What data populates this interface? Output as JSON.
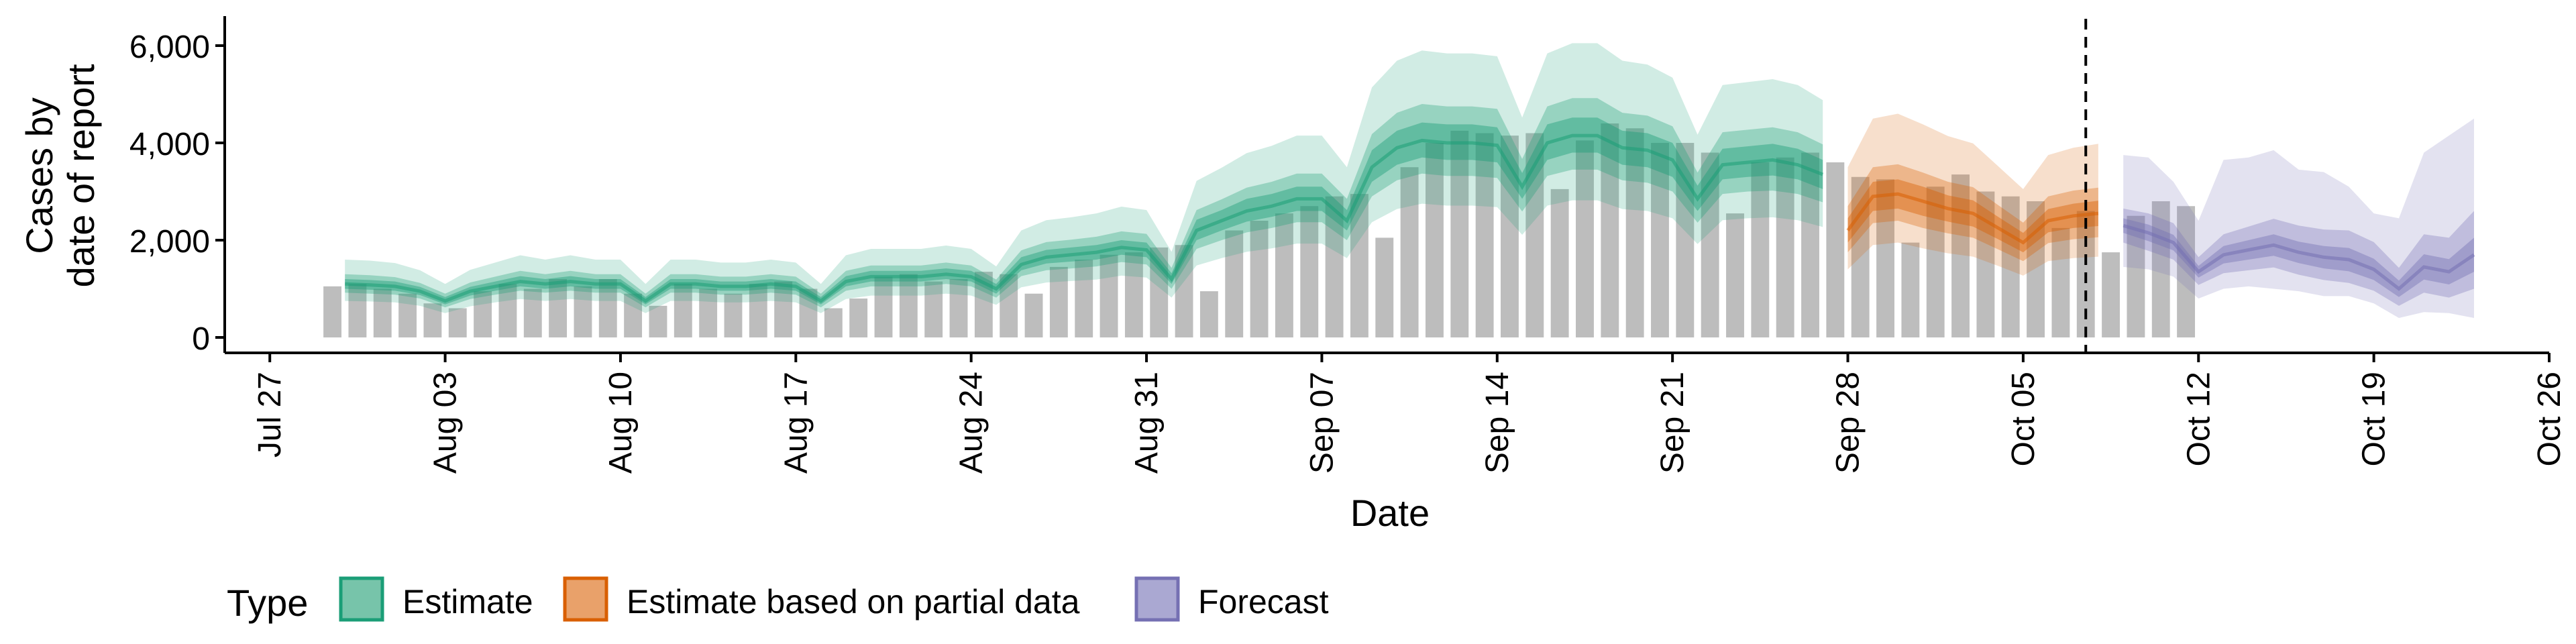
{
  "chart_data": {
    "type": "bar",
    "ylabel_lines": [
      "Cases by",
      "date of report"
    ],
    "xlabel": "Date",
    "ylim": [
      0,
      6000
    ],
    "y_ticks": [
      {
        "value": 0,
        "label": "0"
      },
      {
        "value": 2000,
        "label": "2,000"
      },
      {
        "value": 4000,
        "label": "4,000"
      },
      {
        "value": 6000,
        "label": "6,000"
      }
    ],
    "x_ticks": [
      {
        "day": 0,
        "label": "Jul 27"
      },
      {
        "day": 7,
        "label": "Aug 03"
      },
      {
        "day": 14,
        "label": "Aug 10"
      },
      {
        "day": 21,
        "label": "Aug 17"
      },
      {
        "day": 28,
        "label": "Aug 24"
      },
      {
        "day": 35,
        "label": "Aug 31"
      },
      {
        "day": 42,
        "label": "Sep 07"
      },
      {
        "day": 49,
        "label": "Sep 14"
      },
      {
        "day": 56,
        "label": "Sep 21"
      },
      {
        "day": 63,
        "label": "Sep 28"
      },
      {
        "day": 70,
        "label": "Oct 05"
      },
      {
        "day": 77,
        "label": "Oct 12"
      },
      {
        "day": 84,
        "label": "Oct 19"
      },
      {
        "day": 91,
        "label": "Oct 26"
      }
    ],
    "x_domain_days": [
      -1.8,
      91
    ],
    "date_origin": "Jul 27",
    "cutoff_day": 72.5,
    "reported_cases": {
      "start_day": 2.5,
      "values": [
        1050,
        1100,
        1000,
        900,
        700,
        600,
        950,
        1100,
        1000,
        1200,
        1050,
        1200,
        900,
        650,
        1100,
        1000,
        900,
        1100,
        1150,
        1000,
        600,
        800,
        1250,
        1300,
        1150,
        1200,
        1350,
        1300,
        900,
        1450,
        1600,
        1700,
        1750,
        1850,
        1900,
        950,
        2200,
        2400,
        2550,
        2700,
        2900,
        2950,
        2050,
        3500,
        4000,
        4250,
        4200,
        4150,
        4200,
        3050,
        4050,
        4400,
        4300,
        4000,
        4000,
        3800,
        2550,
        3600,
        3700,
        3800,
        3600,
        3300,
        3250,
        1950,
        3100,
        3350,
        3000,
        2900,
        2800,
        2250,
        2600,
        1750,
        2500,
        2800,
        2700
      ]
    },
    "series": [
      {
        "name": "Estimate",
        "color": "#1b9e77",
        "start_day": 3,
        "median": [
          1100,
          1080,
          1050,
          950,
          750,
          950,
          1050,
          1150,
          1100,
          1150,
          1100,
          1100,
          750,
          1100,
          1100,
          1050,
          1050,
          1100,
          1050,
          750,
          1150,
          1250,
          1250,
          1250,
          1300,
          1250,
          1000,
          1500,
          1650,
          1700,
          1750,
          1850,
          1800,
          1200,
          2200,
          2400,
          2600,
          2700,
          2850,
          2850,
          2400,
          3500,
          3900,
          4050,
          4000,
          4000,
          3950,
          3100,
          4000,
          4150,
          4150,
          3900,
          3850,
          3650,
          2850,
          3550,
          3600,
          3650,
          3550,
          3350
        ],
        "inner_lo": [
          1000,
          980,
          960,
          870,
          680,
          860,
          960,
          1050,
          1000,
          1050,
          1000,
          1000,
          680,
          1000,
          1000,
          960,
          960,
          1000,
          960,
          680,
          1050,
          1150,
          1150,
          1150,
          1200,
          1150,
          900,
          1380,
          1520,
          1560,
          1600,
          1700,
          1650,
          1100,
          2000,
          2200,
          2380,
          2480,
          2600,
          2600,
          2200,
          3200,
          3550,
          3700,
          3650,
          3650,
          3600,
          2850,
          3650,
          3800,
          3800,
          3550,
          3500,
          3300,
          2600,
          3250,
          3300,
          3330,
          3250,
          3050
        ],
        "inner_hi": [
          1200,
          1180,
          1150,
          1040,
          830,
          1040,
          1150,
          1260,
          1200,
          1260,
          1200,
          1200,
          830,
          1200,
          1200,
          1150,
          1150,
          1200,
          1150,
          830,
          1260,
          1370,
          1370,
          1370,
          1420,
          1370,
          1100,
          1650,
          1800,
          1850,
          1900,
          2000,
          1950,
          1320,
          2420,
          2620,
          2850,
          2950,
          3100,
          3100,
          2620,
          3850,
          4250,
          4420,
          4380,
          4380,
          4320,
          3380,
          4380,
          4520,
          4520,
          4250,
          4200,
          4000,
          3120,
          3880,
          3930,
          3980,
          3880,
          3650
        ],
        "mid_lo": [
          920,
          900,
          880,
          800,
          620,
          790,
          880,
          960,
          920,
          960,
          920,
          920,
          620,
          920,
          920,
          880,
          880,
          920,
          880,
          620,
          960,
          1050,
          1050,
          1050,
          1100,
          1050,
          820,
          1260,
          1380,
          1420,
          1460,
          1550,
          1500,
          1000,
          1820,
          2000,
          2160,
          2250,
          2370,
          2370,
          2000,
          2900,
          3230,
          3370,
          3320,
          3320,
          3280,
          2590,
          3320,
          3450,
          3450,
          3230,
          3180,
          3000,
          2360,
          2950,
          3000,
          3020,
          2950,
          2780
        ],
        "mid_hi": [
          1300,
          1280,
          1240,
          1120,
          900,
          1130,
          1250,
          1370,
          1300,
          1370,
          1300,
          1300,
          900,
          1300,
          1300,
          1250,
          1250,
          1300,
          1250,
          900,
          1370,
          1480,
          1480,
          1480,
          1540,
          1480,
          1190,
          1790,
          1960,
          2010,
          2070,
          2180,
          2130,
          1430,
          2620,
          2840,
          3080,
          3200,
          3370,
          3370,
          2850,
          4180,
          4620,
          4800,
          4750,
          4750,
          4700,
          3670,
          4750,
          4920,
          4920,
          4620,
          4560,
          4340,
          3390,
          4220,
          4270,
          4320,
          4220,
          3970
        ],
        "outer_lo": [
          750,
          740,
          720,
          650,
          500,
          640,
          720,
          790,
          750,
          790,
          750,
          750,
          500,
          750,
          750,
          720,
          720,
          750,
          720,
          500,
          790,
          860,
          860,
          860,
          900,
          860,
          670,
          1030,
          1130,
          1160,
          1190,
          1270,
          1230,
          820,
          1480,
          1630,
          1760,
          1830,
          1930,
          1930,
          1630,
          2370,
          2640,
          2750,
          2710,
          2710,
          2680,
          2110,
          2710,
          2820,
          2820,
          2640,
          2600,
          2450,
          1920,
          2410,
          2450,
          2470,
          2410,
          2270
        ],
        "outer_hi": [
          1600,
          1580,
          1530,
          1380,
          1100,
          1390,
          1540,
          1690,
          1600,
          1690,
          1600,
          1600,
          1100,
          1600,
          1600,
          1540,
          1540,
          1600,
          1540,
          1100,
          1690,
          1820,
          1820,
          1820,
          1890,
          1820,
          1460,
          2200,
          2410,
          2470,
          2550,
          2690,
          2620,
          1760,
          3220,
          3490,
          3790,
          3940,
          4150,
          4150,
          3500,
          5140,
          5690,
          5900,
          5840,
          5840,
          5780,
          4520,
          5840,
          6050,
          6050,
          5690,
          5610,
          5340,
          4170,
          5190,
          5250,
          5310,
          5190,
          4880
        ]
      },
      {
        "name": "Estimate based on partial data",
        "color": "#d95f02",
        "start_day": 63,
        "median": [
          2200,
          2900,
          2950,
          2800,
          2650,
          2550,
          2250,
          1950,
          2400,
          2500,
          2550
        ],
        "inner_lo": [
          1950,
          2600,
          2650,
          2500,
          2380,
          2280,
          2020,
          1750,
          2160,
          2250,
          2290
        ],
        "inner_hi": [
          2450,
          3200,
          3250,
          3100,
          2920,
          2820,
          2480,
          2150,
          2640,
          2750,
          2810
        ],
        "mid_lo": [
          1750,
          2350,
          2400,
          2250,
          2140,
          2050,
          1810,
          1570,
          1940,
          2020,
          2060
        ],
        "mid_hi": [
          2700,
          3500,
          3560,
          3390,
          3200,
          3090,
          2720,
          2360,
          2900,
          3020,
          3080
        ],
        "outer_lo": [
          1400,
          1900,
          1950,
          1830,
          1730,
          1660,
          1470,
          1270,
          1570,
          1630,
          1660
        ],
        "outer_hi": [
          3500,
          4500,
          4600,
          4380,
          4140,
          3990,
          3520,
          3050,
          3750,
          3900,
          3980
        ]
      },
      {
        "name": "Forecast",
        "color": "#7570b3",
        "start_day": 74,
        "median": [
          2300,
          2150,
          1950,
          1350,
          1700,
          1800,
          1900,
          1750,
          1650,
          1600,
          1400,
          1000,
          1450,
          1350,
          1700
        ],
        "inner_lo": [
          2150,
          1980,
          1790,
          1230,
          1520,
          1600,
          1680,
          1530,
          1420,
          1360,
          1180,
          830,
          1190,
          1090,
          1350
        ],
        "inner_hi": [
          2450,
          2320,
          2110,
          1470,
          1880,
          2000,
          2120,
          1970,
          1880,
          1840,
          1620,
          1170,
          1710,
          1610,
          2050
        ],
        "mid_lo": [
          1950,
          1780,
          1600,
          1080,
          1320,
          1380,
          1440,
          1290,
          1180,
          1120,
          960,
          650,
          920,
          820,
          1000
        ],
        "mid_hi": [
          2650,
          2550,
          2350,
          1650,
          2120,
          2280,
          2440,
          2300,
          2220,
          2200,
          1960,
          1430,
          2120,
          2050,
          2600
        ],
        "outer_lo": [
          1450,
          1400,
          1250,
          800,
          1000,
          1050,
          1000,
          950,
          850,
          850,
          700,
          400,
          520,
          500,
          400
        ],
        "outer_hi": [
          3750,
          3700,
          3200,
          2400,
          3650,
          3700,
          3850,
          3450,
          3400,
          3100,
          2550,
          2450,
          3800,
          4150,
          4500
        ]
      }
    ],
    "legend": {
      "title": "Type",
      "position": "bottom-left",
      "items": [
        "Estimate",
        "Estimate based on partial data",
        "Forecast"
      ]
    }
  }
}
